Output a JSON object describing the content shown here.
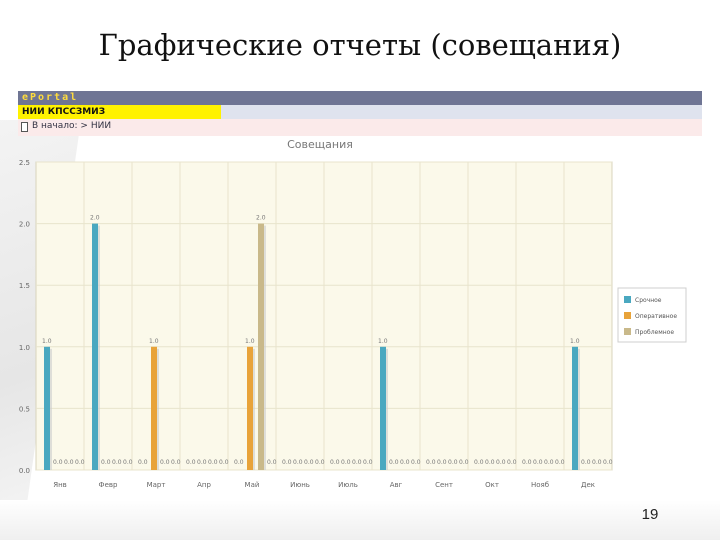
{
  "slide": {
    "title": "Графические отчеты (совещания)",
    "page_number": "19"
  },
  "portal": {
    "logo": "ePortal",
    "org": "НИИ КПССЗМИЗ",
    "breadcrumb": "В начало: > НИИ"
  },
  "chart_data": {
    "type": "bar",
    "title": "Совещания",
    "categories": [
      "Янв",
      "Февр",
      "Март",
      "Апр",
      "Май",
      "Июнь",
      "Июль",
      "Авг",
      "Сент",
      "Окт",
      "Нояб",
      "Дек"
    ],
    "series": [
      {
        "name": "Срочное",
        "color": "#4aa8c0",
        "values": [
          1,
          2,
          0,
          0,
          0,
          0,
          0,
          1,
          0,
          0,
          0,
          1
        ]
      },
      {
        "name": "Оперативное",
        "color": "#e8a33a",
        "values": [
          0,
          0,
          1,
          0,
          1,
          0,
          0,
          0,
          0,
          0,
          0,
          0
        ]
      },
      {
        "name": "Проблемное",
        "color": "#c9b98a",
        "values": [
          0,
          0,
          0,
          0,
          2,
          0,
          0,
          0,
          0,
          0,
          0,
          0
        ]
      }
    ],
    "ylim": [
      0,
      2.5
    ],
    "yticks": [
      "0.0",
      "0.5",
      "1.0",
      "1.5",
      "2.0",
      "2.5"
    ],
    "data_labels": [
      [
        "1.0",
        "0.0",
        "0.0",
        "0.0"
      ],
      [
        "2.0",
        "0.0",
        "0.0",
        "0.0"
      ],
      [
        "0.0",
        "1.0",
        "0.0",
        "0.0"
      ],
      [
        "0.0",
        "0.0",
        "0.0",
        "0.0"
      ],
      [
        "0.0",
        "1.0",
        "2.0",
        "0.0"
      ],
      [
        "0.0",
        "0.0",
        "0.0",
        "0.0"
      ],
      [
        "0.0",
        "0.0",
        "0.0",
        "0.0"
      ],
      [
        "1.0",
        "0.0",
        "0.0",
        "0.0"
      ],
      [
        "0.0",
        "0.0",
        "0.0",
        "0.0"
      ],
      [
        "0.0",
        "0.0",
        "0.0",
        "0.0"
      ],
      [
        "0.0",
        "0.0",
        "0.0",
        "0.0"
      ],
      [
        "1.0",
        "0.0",
        "0.0",
        "0.0"
      ]
    ],
    "legend_position": "right",
    "grid": true,
    "colors": {
      "plot_bg": "#fbf9ea",
      "grid": "#e8e4cc"
    }
  }
}
